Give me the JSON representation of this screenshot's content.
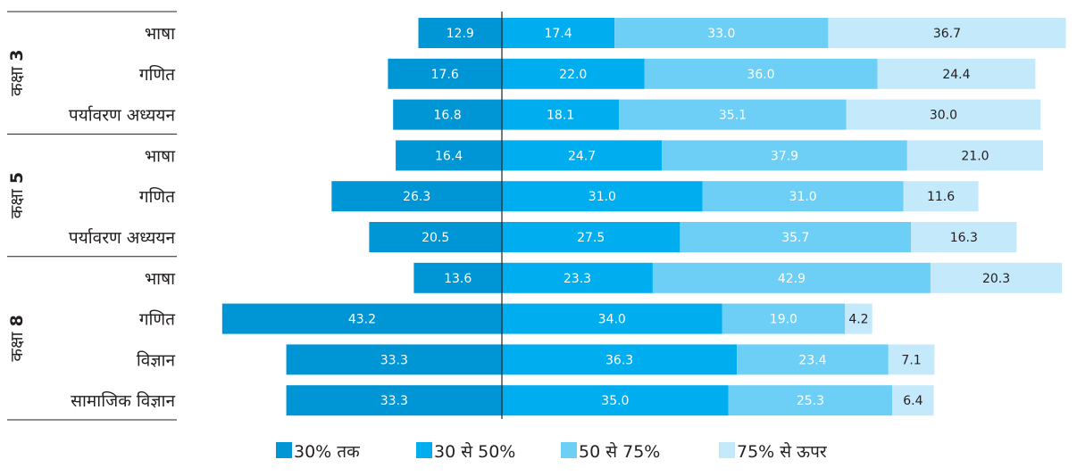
{
  "chart_data": {
    "type": "bar",
    "orientation": "horizontal",
    "stacked": "diverging",
    "groups": [
      {
        "label": "कक्षा",
        "number": "3",
        "categories": [
          "भाषा",
          "गणित",
          "पर्यावरण अध्ययन"
        ]
      },
      {
        "label": "कक्षा",
        "number": "5",
        "categories": [
          "भाषा",
          "गणित",
          "पर्यावरण अध्ययन"
        ]
      },
      {
        "label": "कक्षा",
        "number": "8",
        "categories": [
          "भाषा",
          "गणित",
          "विज्ञान",
          "सामाजिक विज्ञान"
        ]
      }
    ],
    "series": [
      {
        "name": "30% तक",
        "color": "#0096d6",
        "values": [
          12.9,
          17.6,
          16.8,
          16.4,
          26.3,
          20.5,
          13.6,
          43.2,
          33.3,
          33.3
        ]
      },
      {
        "name": "30 से 50%",
        "color": "#00aeef",
        "values": [
          17.4,
          22.0,
          18.1,
          24.7,
          31.0,
          27.5,
          23.3,
          34.0,
          36.3,
          35.0
        ]
      },
      {
        "name": "50 से 75%",
        "color": "#6dcff6",
        "values": [
          33.0,
          36.0,
          35.1,
          37.9,
          31.0,
          35.7,
          42.9,
          19.0,
          23.4,
          25.3
        ]
      },
      {
        "name": "75% से ऊपर",
        "color": "#c4e9fa",
        "values": [
          36.7,
          24.4,
          30.0,
          21.0,
          11.6,
          16.3,
          20.3,
          4.2,
          7.1,
          6.4
        ]
      }
    ],
    "label_colors": [
      "#ffffff",
      "#ffffff",
      "#ffffff",
      "#231f20"
    ],
    "legend_position": "bottom",
    "grid": false
  }
}
